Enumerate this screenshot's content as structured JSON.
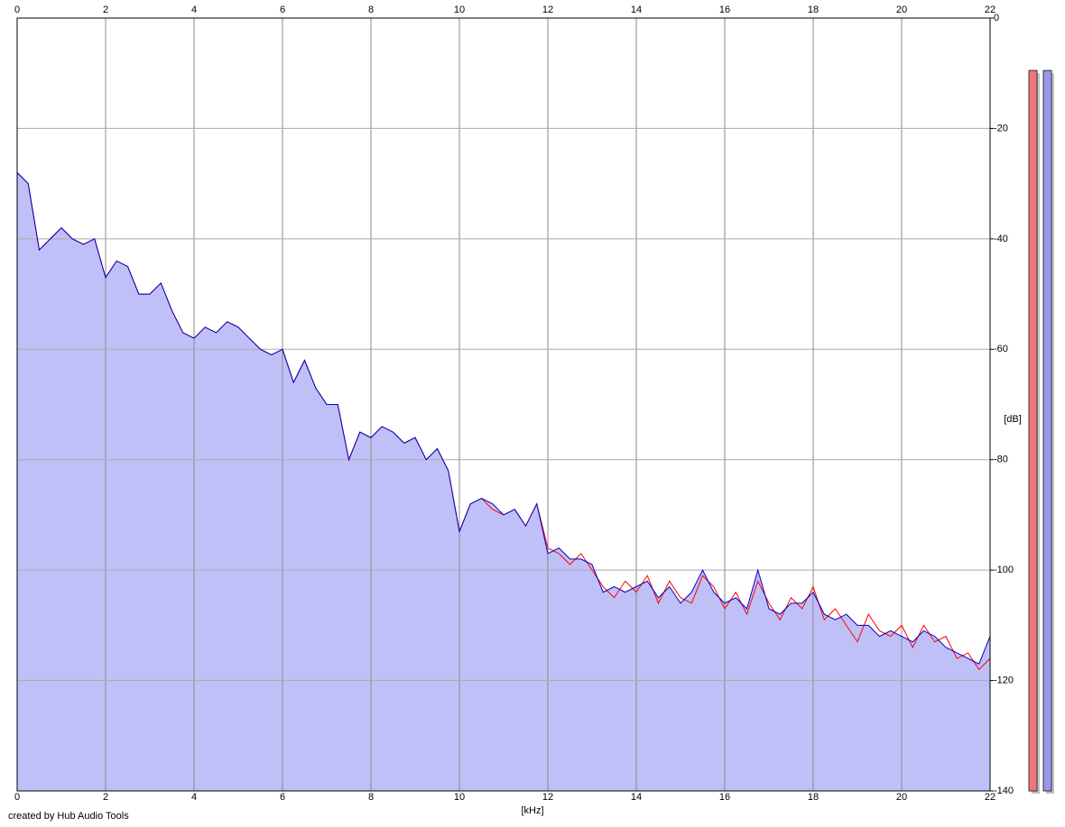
{
  "chart_data": {
    "type": "line",
    "xlabel": "[kHz]",
    "ylabel": "[dB]",
    "xlim": [
      0,
      22
    ],
    "xticks": [
      0,
      2,
      4,
      6,
      8,
      10,
      12,
      14,
      16,
      18,
      20,
      22
    ],
    "ylim": [
      -140,
      0
    ],
    "yticks": [
      0,
      -20,
      -40,
      -60,
      -80,
      -100,
      -120,
      -140
    ],
    "grid": true,
    "fill_color": "#c0c0f8",
    "x": [
      0,
      0.25,
      0.5,
      0.75,
      1,
      1.25,
      1.5,
      1.75,
      2,
      2.25,
      2.5,
      2.75,
      3,
      3.25,
      3.5,
      3.75,
      4,
      4.25,
      4.5,
      4.75,
      5,
      5.25,
      5.5,
      5.75,
      6,
      6.25,
      6.5,
      6.75,
      7,
      7.25,
      7.5,
      7.75,
      8,
      8.25,
      8.5,
      8.75,
      9,
      9.25,
      9.5,
      9.75,
      10,
      10.25,
      10.5,
      10.75,
      11,
      11.25,
      11.5,
      11.75,
      12,
      12.25,
      12.5,
      12.75,
      13,
      13.25,
      13.5,
      13.75,
      14,
      14.25,
      14.5,
      14.75,
      15,
      15.25,
      15.5,
      15.75,
      16,
      16.25,
      16.5,
      16.75,
      17,
      17.25,
      17.5,
      17.75,
      18,
      18.25,
      18.5,
      18.75,
      19,
      19.25,
      19.5,
      19.75,
      20,
      20.25,
      20.5,
      20.75,
      21,
      21.25,
      21.5,
      21.75,
      22
    ],
    "series": [
      {
        "color": "#ff0000",
        "values": [
          -28,
          -30,
          -42,
          -40,
          -38,
          -40,
          -41,
          -40,
          -47,
          -44,
          -45,
          -50,
          -50,
          -48,
          -53,
          -57,
          -58,
          -56,
          -57,
          -55,
          -56,
          -58,
          -60,
          -61,
          -60,
          -66,
          -62,
          -67,
          -70,
          -70,
          -80,
          -75,
          -76,
          -74,
          -75,
          -77,
          -76,
          -80,
          -78,
          -82,
          -93,
          -88,
          -87,
          -89,
          -90,
          -89,
          -92,
          -88,
          -96,
          -97,
          -99,
          -97,
          -100,
          -103,
          -105,
          -102,
          -104,
          -101,
          -106,
          -102,
          -105,
          -106,
          -101,
          -103,
          -107,
          -104,
          -108,
          -102,
          -106,
          -109,
          -105,
          -107,
          -103,
          -109,
          -107,
          -110,
          -113,
          -108,
          -111,
          -112,
          -110,
          -114,
          -110,
          -113,
          -112,
          -116,
          -115,
          -118,
          -116
        ]
      },
      {
        "color": "#0000c0",
        "values": [
          -28,
          -30,
          -42,
          -40,
          -38,
          -40,
          -41,
          -40,
          -47,
          -44,
          -45,
          -50,
          -50,
          -48,
          -53,
          -57,
          -58,
          -56,
          -57,
          -55,
          -56,
          -58,
          -60,
          -61,
          -60,
          -66,
          -62,
          -67,
          -70,
          -70,
          -80,
          -75,
          -76,
          -74,
          -75,
          -77,
          -76,
          -80,
          -78,
          -82,
          -93,
          -88,
          -87,
          -88,
          -90,
          -89,
          -92,
          -88,
          -97,
          -96,
          -98,
          -98,
          -99,
          -104,
          -103,
          -104,
          -103,
          -102,
          -105,
          -103,
          -106,
          -104,
          -100,
          -104,
          -106,
          -105,
          -107,
          -100,
          -107,
          -108,
          -106,
          -106,
          -104,
          -108,
          -109,
          -108,
          -110,
          -110,
          -112,
          -111,
          -112,
          -113,
          -111,
          -112,
          -114,
          -115,
          -116,
          -117,
          -112
        ]
      }
    ],
    "meters": [
      {
        "color": "#f07878",
        "value": -9.5
      },
      {
        "color": "#9898e8",
        "value": -9.5
      }
    ],
    "footer": "created by Hub Audio Tools"
  }
}
